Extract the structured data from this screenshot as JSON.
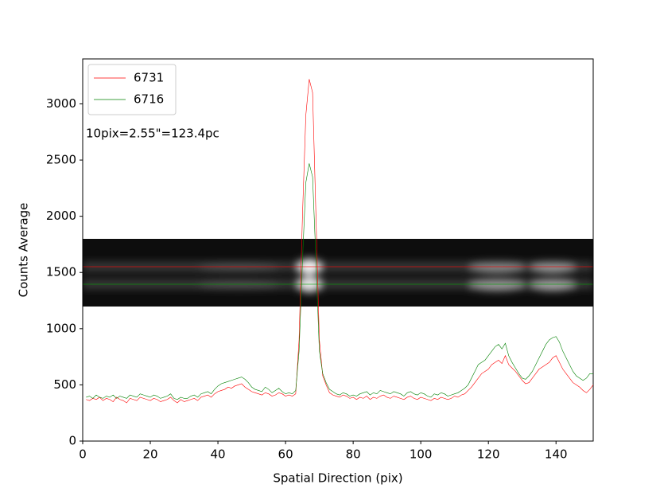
{
  "chart_data": {
    "type": "line",
    "xlabel": "Spatial Direction (pix)",
    "ylabel": "Counts Average",
    "annotation": "10pix=2.55\"=123.4pc",
    "legend": "upper left",
    "xlim": [
      0,
      151
    ],
    "ylim": [
      0,
      3400
    ],
    "xticks": [
      0,
      20,
      40,
      60,
      80,
      100,
      120,
      140
    ],
    "yticks": [
      0,
      500,
      1000,
      1500,
      2000,
      2500,
      3000
    ],
    "x": [
      1,
      2,
      3,
      4,
      5,
      6,
      7,
      8,
      9,
      10,
      11,
      12,
      13,
      14,
      15,
      16,
      17,
      18,
      19,
      20,
      21,
      22,
      23,
      24,
      25,
      26,
      27,
      28,
      29,
      30,
      31,
      32,
      33,
      34,
      35,
      36,
      37,
      38,
      39,
      40,
      41,
      42,
      43,
      44,
      45,
      46,
      47,
      48,
      49,
      50,
      51,
      52,
      53,
      54,
      55,
      56,
      57,
      58,
      59,
      60,
      61,
      62,
      63,
      64,
      65,
      66,
      67,
      68,
      69,
      70,
      71,
      72,
      73,
      74,
      75,
      76,
      77,
      78,
      79,
      80,
      81,
      82,
      83,
      84,
      85,
      86,
      87,
      88,
      89,
      90,
      91,
      92,
      93,
      94,
      95,
      96,
      97,
      98,
      99,
      100,
      101,
      102,
      103,
      104,
      105,
      106,
      107,
      108,
      109,
      110,
      111,
      112,
      113,
      114,
      115,
      116,
      117,
      118,
      119,
      120,
      121,
      122,
      123,
      124,
      125,
      126,
      127,
      128,
      129,
      130,
      131,
      132,
      133,
      134,
      135,
      136,
      137,
      138,
      139,
      140,
      141,
      142,
      143,
      144,
      145,
      146,
      147,
      148,
      149,
      150,
      151
    ],
    "series": [
      {
        "name": "6731",
        "color": "#ff0000",
        "values": [
          370,
          360,
          380,
          370,
          390,
          360,
          380,
          370,
          350,
          390,
          370,
          360,
          340,
          380,
          370,
          360,
          390,
          380,
          370,
          360,
          380,
          370,
          350,
          360,
          370,
          390,
          360,
          340,
          370,
          350,
          360,
          370,
          380,
          360,
          390,
          400,
          410,
          390,
          420,
          440,
          450,
          460,
          480,
          470,
          490,
          500,
          510,
          480,
          460,
          440,
          430,
          420,
          410,
          430,
          420,
          400,
          410,
          430,
          420,
          400,
          410,
          400,
          420,
          900,
          2000,
          2900,
          3220,
          3100,
          2000,
          900,
          580,
          500,
          430,
          410,
          400,
          390,
          410,
          400,
          380,
          390,
          370,
          390,
          380,
          400,
          370,
          390,
          380,
          400,
          410,
          390,
          380,
          400,
          390,
          380,
          370,
          390,
          400,
          380,
          370,
          390,
          380,
          370,
          360,
          380,
          370,
          390,
          380,
          370,
          380,
          400,
          390,
          410,
          420,
          450,
          480,
          520,
          560,
          600,
          620,
          640,
          680,
          700,
          720,
          690,
          760,
          680,
          650,
          620,
          580,
          540,
          510,
          520,
          560,
          600,
          640,
          660,
          680,
          700,
          740,
          760,
          700,
          640,
          600,
          560,
          520,
          500,
          480,
          450,
          430,
          460,
          500
        ]
      },
      {
        "name": "6716",
        "color": "#008000",
        "values": [
          390,
          400,
          380,
          410,
          390,
          380,
          400,
          390,
          410,
          380,
          400,
          390,
          380,
          410,
          400,
          390,
          420,
          410,
          400,
          390,
          410,
          400,
          380,
          390,
          400,
          420,
          380,
          370,
          390,
          380,
          380,
          400,
          410,
          390,
          420,
          430,
          440,
          420,
          460,
          490,
          510,
          520,
          530,
          540,
          550,
          560,
          570,
          550,
          520,
          480,
          460,
          450,
          440,
          480,
          460,
          430,
          450,
          470,
          440,
          420,
          430,
          420,
          450,
          800,
          1600,
          2300,
          2470,
          2350,
          1600,
          800,
          600,
          520,
          460,
          440,
          420,
          410,
          430,
          420,
          400,
          410,
          400,
          420,
          430,
          440,
          410,
          430,
          420,
          450,
          440,
          430,
          420,
          440,
          430,
          420,
          400,
          430,
          440,
          420,
          410,
          430,
          420,
          400,
          390,
          420,
          410,
          430,
          420,
          400,
          410,
          420,
          430,
          450,
          470,
          500,
          560,
          620,
          680,
          700,
          720,
          760,
          800,
          840,
          860,
          820,
          870,
          760,
          700,
          650,
          600,
          560,
          550,
          580,
          620,
          680,
          740,
          800,
          860,
          900,
          920,
          930,
          880,
          800,
          740,
          680,
          620,
          580,
          560,
          540,
          560,
          600,
          600
        ]
      }
    ]
  }
}
